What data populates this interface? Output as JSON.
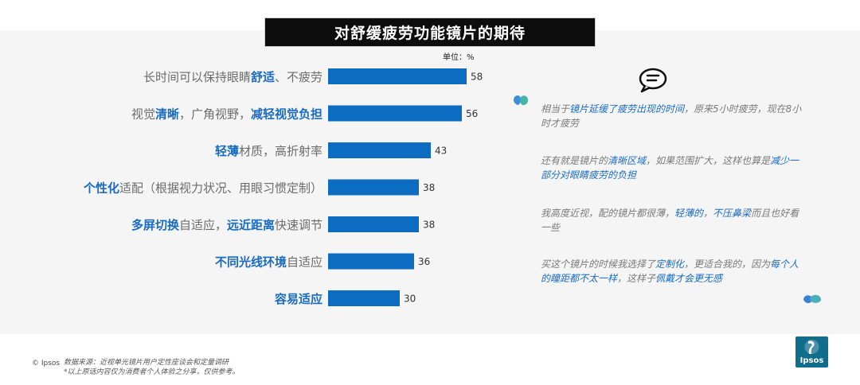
{
  "chart_data": {
    "type": "bar",
    "orientation": "horizontal",
    "title": "对舒缓疲劳功能镜片的期待",
    "unit_label": "单位：%",
    "categories": [
      [
        {
          "t": "长时间可以保持眼睛",
          "b": false
        },
        {
          "t": "舒适",
          "b": true
        },
        {
          "t": "、不疲劳",
          "b": false
        }
      ],
      [
        {
          "t": "视觉",
          "b": false
        },
        {
          "t": "清晰",
          "b": true
        },
        {
          "t": "，广角视野，",
          "b": false
        },
        {
          "t": "减轻视觉负担",
          "b": true
        }
      ],
      [
        {
          "t": "轻薄",
          "b": true
        },
        {
          "t": "材质，高折射率",
          "b": false
        }
      ],
      [
        {
          "t": "个性化",
          "b": true
        },
        {
          "t": "适配（根据视力状况、用眼习惯定制）",
          "b": false
        }
      ],
      [
        {
          "t": "多屏切换",
          "b": true
        },
        {
          "t": "自适应，",
          "b": false
        },
        {
          "t": "远近距离",
          "b": true
        },
        {
          "t": "快速调节",
          "b": false
        }
      ],
      [
        {
          "t": "不同光线环境",
          "b": true
        },
        {
          "t": "自适应",
          "b": false
        }
      ],
      [
        {
          "t": "容易适应",
          "b": true
        }
      ]
    ],
    "values": [
      58,
      56,
      43,
      38,
      38,
      36,
      30
    ],
    "bar_color": "#0b6cc2",
    "highlight_color": "#1a6bbf",
    "label_color": "#6b6b6b"
  },
  "quotes": [
    [
      {
        "t": "相当于",
        "h": false
      },
      {
        "t": "镜片延缓了疲劳出现的时间",
        "h": true
      },
      {
        "t": "，原来5小时疲劳，现在8小时才疲劳",
        "h": false
      }
    ],
    [
      {
        "t": "还有就是镜片的",
        "h": false
      },
      {
        "t": "清晰区域",
        "h": true
      },
      {
        "t": "，如果范围扩大，这样也算是",
        "h": false
      },
      {
        "t": "减少一部分对眼睛疲劳的负担",
        "h": true
      }
    ],
    [
      {
        "t": "我高度近视，配的镜片都很薄，",
        "h": false
      },
      {
        "t": "轻薄的",
        "h": true
      },
      {
        "t": "，",
        "h": false
      },
      {
        "t": "不压鼻梁",
        "h": true
      },
      {
        "t": "而且也好看一些",
        "h": false
      }
    ],
    [
      {
        "t": "买这个镜片的时候我选择了",
        "h": false
      },
      {
        "t": "定制化",
        "h": true
      },
      {
        "t": "，更适合我的，因为",
        "h": false
      },
      {
        "t": "每个人的瞳距都不太一样",
        "h": true
      },
      {
        "t": "，这样子",
        "h": false
      },
      {
        "t": "佩戴才会更无感",
        "h": true
      }
    ]
  ],
  "footer": {
    "copyright": "© Ipsos",
    "source_line1": "数据来源：近视单光镜片用户定性座谈会和定量调研",
    "source_line2": "*以上原话内容仅为消费者个人体验之分享，仅供参考。",
    "logo_text": "Ipsos"
  }
}
